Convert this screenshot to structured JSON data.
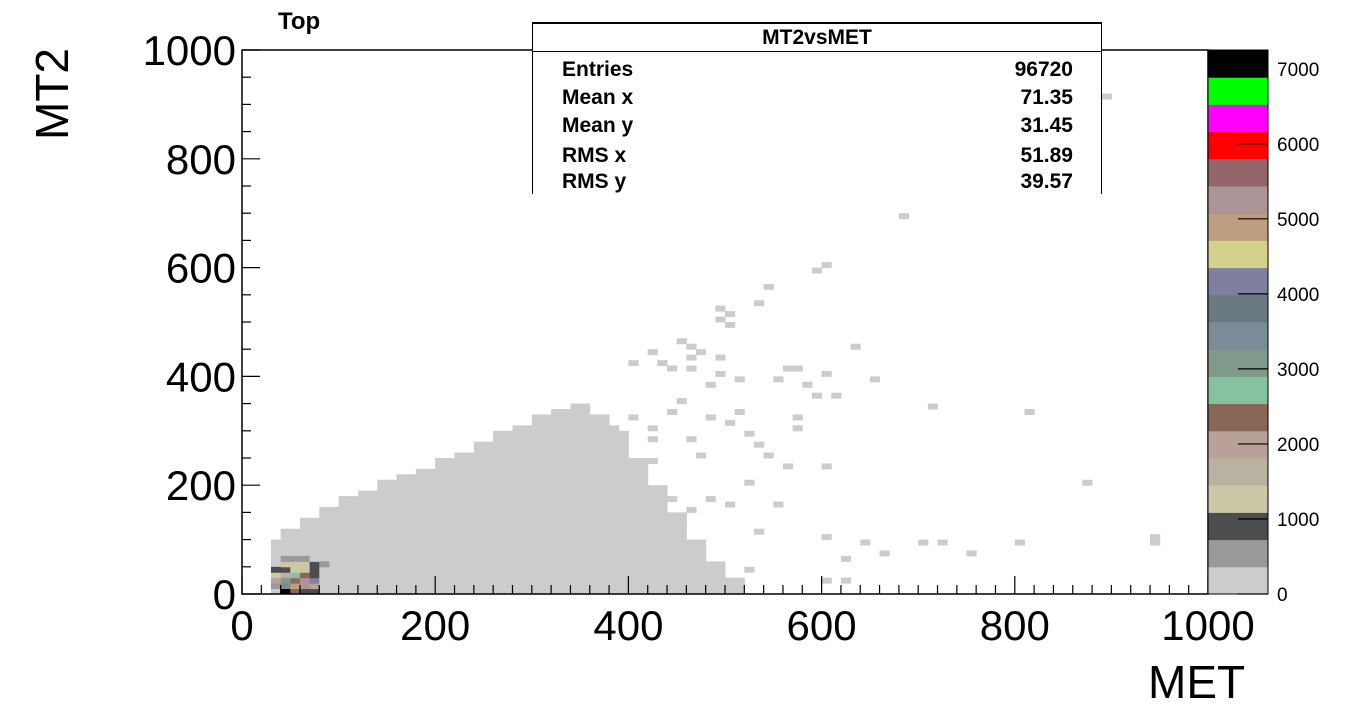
{
  "panel_label": "Top",
  "stats": {
    "title": "MT2vsMET",
    "rows": [
      {
        "label": "Entries",
        "value": "96720"
      },
      {
        "label": "Mean x",
        "value": "71.35"
      },
      {
        "label": "Mean y",
        "value": "31.45"
      },
      {
        "label": "RMS x",
        "value": "51.89"
      },
      {
        "label": "RMS y",
        "value": "39.57"
      }
    ]
  },
  "chart_data": {
    "type": "heatmap",
    "title": "MT2vsMET",
    "xlabel": "MET",
    "ylabel": "MT2",
    "xlim": [
      0,
      1000
    ],
    "ylim": [
      0,
      1000
    ],
    "x_ticks": [
      "0",
      "200",
      "400",
      "600",
      "800",
      "1000"
    ],
    "y_ticks": [
      "0",
      "200",
      "400",
      "600",
      "800",
      "1000"
    ],
    "z_range": [
      0,
      7250
    ],
    "z_ticks": [
      "0",
      "1000",
      "2000",
      "3000",
      "4000",
      "5000",
      "6000",
      "7000"
    ],
    "bin_width": 10,
    "grid": false,
    "palette": [
      "#cccccc",
      "#999999",
      "#4d4d4d",
      "#ccc7a6",
      "#b8b3a1",
      "#b8a199",
      "#8a6656",
      "#85c2a1",
      "#7f998a",
      "#7a8c96",
      "#6b7a80",
      "#7f7f9e",
      "#d4d18a",
      "#bf9e80",
      "#ad9496",
      "#946669",
      "#ff0000",
      "#ff00ff",
      "#00ff00",
      "#000000"
    ],
    "bins": [
      [
        30,
        0,
        300
      ],
      [
        40,
        0,
        7200
      ],
      [
        50,
        0,
        2500
      ],
      [
        60,
        0,
        1000
      ],
      [
        70,
        0,
        900
      ],
      [
        80,
        0,
        300
      ],
      [
        90,
        0,
        200
      ],
      [
        100,
        0,
        200
      ],
      [
        30,
        10,
        600
      ],
      [
        40,
        10,
        3500
      ],
      [
        50,
        10,
        5000
      ],
      [
        60,
        10,
        5200
      ],
      [
        70,
        10,
        2000
      ],
      [
        80,
        10,
        100
      ],
      [
        30,
        20,
        2100
      ],
      [
        40,
        20,
        3200
      ],
      [
        50,
        20,
        5500
      ],
      [
        60,
        20,
        5400
      ],
      [
        70,
        20,
        4000
      ],
      [
        80,
        20,
        200
      ],
      [
        30,
        30,
        1300
      ],
      [
        40,
        30,
        1700
      ],
      [
        50,
        30,
        2600
      ],
      [
        60,
        30,
        2500
      ],
      [
        70,
        30,
        1000
      ],
      [
        80,
        30,
        200
      ],
      [
        30,
        40,
        900
      ],
      [
        40,
        40,
        1000
      ],
      [
        50,
        40,
        1100
      ],
      [
        60,
        40,
        1100
      ],
      [
        70,
        40,
        900
      ],
      [
        80,
        40,
        300
      ],
      [
        40,
        50,
        1100
      ],
      [
        50,
        50,
        1100
      ],
      [
        60,
        50,
        1200
      ],
      [
        70,
        50,
        900
      ],
      [
        80,
        50,
        400
      ],
      [
        40,
        60,
        600
      ],
      [
        50,
        60,
        600
      ],
      [
        60,
        60,
        600
      ],
      [
        70,
        60,
        100
      ],
      [
        940,
        90,
        10
      ],
      [
        940,
        100,
        10
      ]
    ],
    "scatter_bins": [
      [
        890,
        910
      ],
      [
        680,
        690
      ],
      [
        600,
        600
      ],
      [
        590,
        590
      ],
      [
        540,
        560
      ],
      [
        530,
        530
      ],
      [
        500,
        510
      ],
      [
        490,
        520
      ],
      [
        490,
        500
      ],
      [
        500,
        490
      ],
      [
        630,
        450
      ],
      [
        450,
        460
      ],
      [
        460,
        450
      ],
      [
        470,
        440
      ],
      [
        460,
        430
      ],
      [
        420,
        440
      ],
      [
        400,
        420
      ],
      [
        430,
        420
      ],
      [
        440,
        410
      ],
      [
        460,
        410
      ],
      [
        490,
        430
      ],
      [
        490,
        400
      ],
      [
        480,
        380
      ],
      [
        510,
        390
      ],
      [
        550,
        390
      ],
      [
        560,
        410
      ],
      [
        570,
        410
      ],
      [
        580,
        380
      ],
      [
        600,
        400
      ],
      [
        590,
        360
      ],
      [
        610,
        360
      ],
      [
        650,
        390
      ],
      [
        710,
        340
      ],
      [
        810,
        330
      ],
      [
        570,
        320
      ],
      [
        570,
        300
      ],
      [
        530,
        270
      ],
      [
        540,
        250
      ],
      [
        560,
        230
      ],
      [
        600,
        230
      ],
      [
        520,
        200
      ],
      [
        480,
        170
      ],
      [
        500,
        160
      ],
      [
        550,
        160
      ],
      [
        530,
        110
      ],
      [
        600,
        100
      ],
      [
        640,
        90
      ],
      [
        620,
        60
      ],
      [
        660,
        70
      ],
      [
        700,
        90
      ],
      [
        720,
        90
      ],
      [
        750,
        70
      ],
      [
        800,
        90
      ],
      [
        870,
        200
      ],
      [
        420,
        300
      ],
      [
        440,
        330
      ],
      [
        400,
        320
      ],
      [
        380,
        300
      ],
      [
        360,
        310
      ],
      [
        450,
        350
      ],
      [
        480,
        320
      ],
      [
        500,
        310
      ],
      [
        510,
        330
      ],
      [
        520,
        290
      ],
      [
        460,
        280
      ],
      [
        470,
        250
      ],
      [
        420,
        280
      ],
      [
        360,
        260
      ],
      [
        380,
        230
      ],
      [
        420,
        240
      ],
      [
        430,
        190
      ],
      [
        440,
        170
      ],
      [
        460,
        150
      ],
      [
        450,
        120
      ],
      [
        410,
        110
      ],
      [
        400,
        80
      ],
      [
        380,
        60
      ],
      [
        350,
        40
      ],
      [
        420,
        30
      ],
      [
        460,
        40
      ],
      [
        520,
        40
      ],
      [
        600,
        20
      ],
      [
        620,
        20
      ]
    ]
  }
}
